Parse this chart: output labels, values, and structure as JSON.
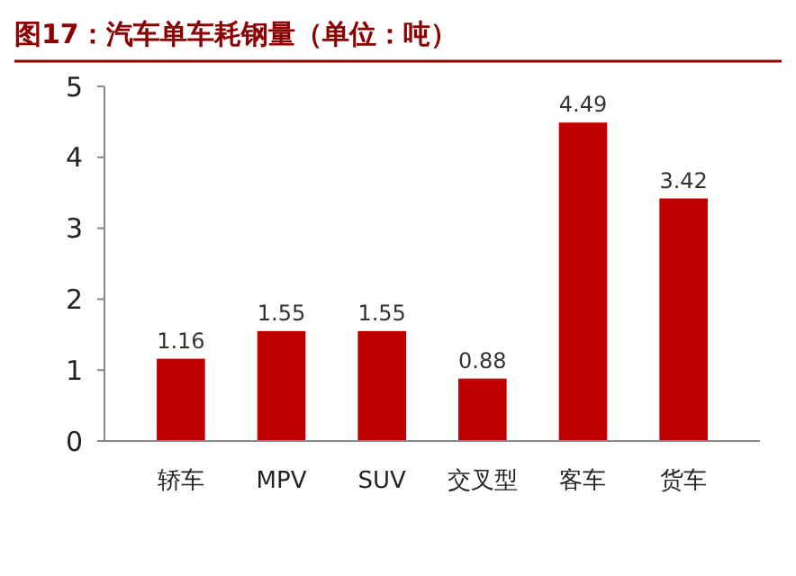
{
  "chart_data": {
    "type": "bar",
    "title": "图17：汽车单车耗钢量（单位：吨）",
    "categories": [
      "轿车",
      "MPV",
      "SUV",
      "交叉型",
      "客车",
      "货车"
    ],
    "values": [
      1.16,
      1.55,
      1.55,
      0.88,
      4.49,
      3.42
    ],
    "color": "#c00000",
    "ylim": [
      0,
      5
    ],
    "yticks": [
      0,
      1,
      2,
      3,
      4,
      5
    ],
    "grid": false,
    "data_labels": true
  }
}
